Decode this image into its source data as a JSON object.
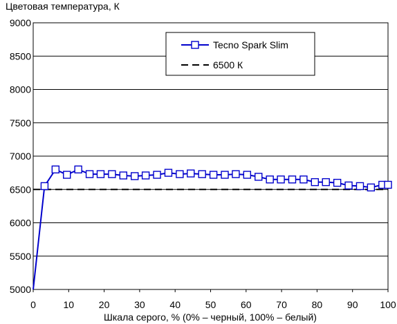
{
  "chart_data": {
    "type": "line",
    "title": "",
    "ylabel": "Цветовая температура, К",
    "xlabel": "Шкала серого, % (0% – черный, 100% – белый)",
    "xlim": [
      0,
      100
    ],
    "ylim": [
      5000,
      9000
    ],
    "x_ticks": [
      "0",
      "10",
      "20",
      "30",
      "40",
      "50",
      "60",
      "70",
      "80",
      "90",
      "100"
    ],
    "y_ticks": [
      "5000",
      "5500",
      "6000",
      "6500",
      "7000",
      "7500",
      "8000",
      "8500",
      "9000"
    ],
    "grid": true,
    "legend_position": "top-right",
    "colors": {
      "series": "#0000cc",
      "reference": "#000000",
      "grid": "#000000"
    },
    "series": [
      {
        "name": "Tecno Spark Slim",
        "x": [
          0,
          3.2,
          6.3,
          9.5,
          12.7,
          15.9,
          19,
          22.2,
          25.4,
          28.6,
          31.7,
          34.9,
          38.1,
          41.3,
          44.4,
          47.6,
          50.8,
          54,
          57.1,
          60.3,
          63.5,
          66.7,
          69.8,
          73,
          76.2,
          79.4,
          82.5,
          85.7,
          88.9,
          92.1,
          95.2,
          98.4,
          100
        ],
        "values": [
          5000,
          6550,
          6800,
          6720,
          6800,
          6730,
          6730,
          6730,
          6710,
          6700,
          6710,
          6720,
          6750,
          6730,
          6740,
          6730,
          6720,
          6720,
          6730,
          6720,
          6690,
          6650,
          6650,
          6650,
          6650,
          6610,
          6610,
          6600,
          6560,
          6550,
          6530,
          6570,
          6570
        ]
      },
      {
        "name": "6500 К",
        "x": [
          0,
          100
        ],
        "values": [
          6500,
          6500
        ]
      }
    ]
  }
}
